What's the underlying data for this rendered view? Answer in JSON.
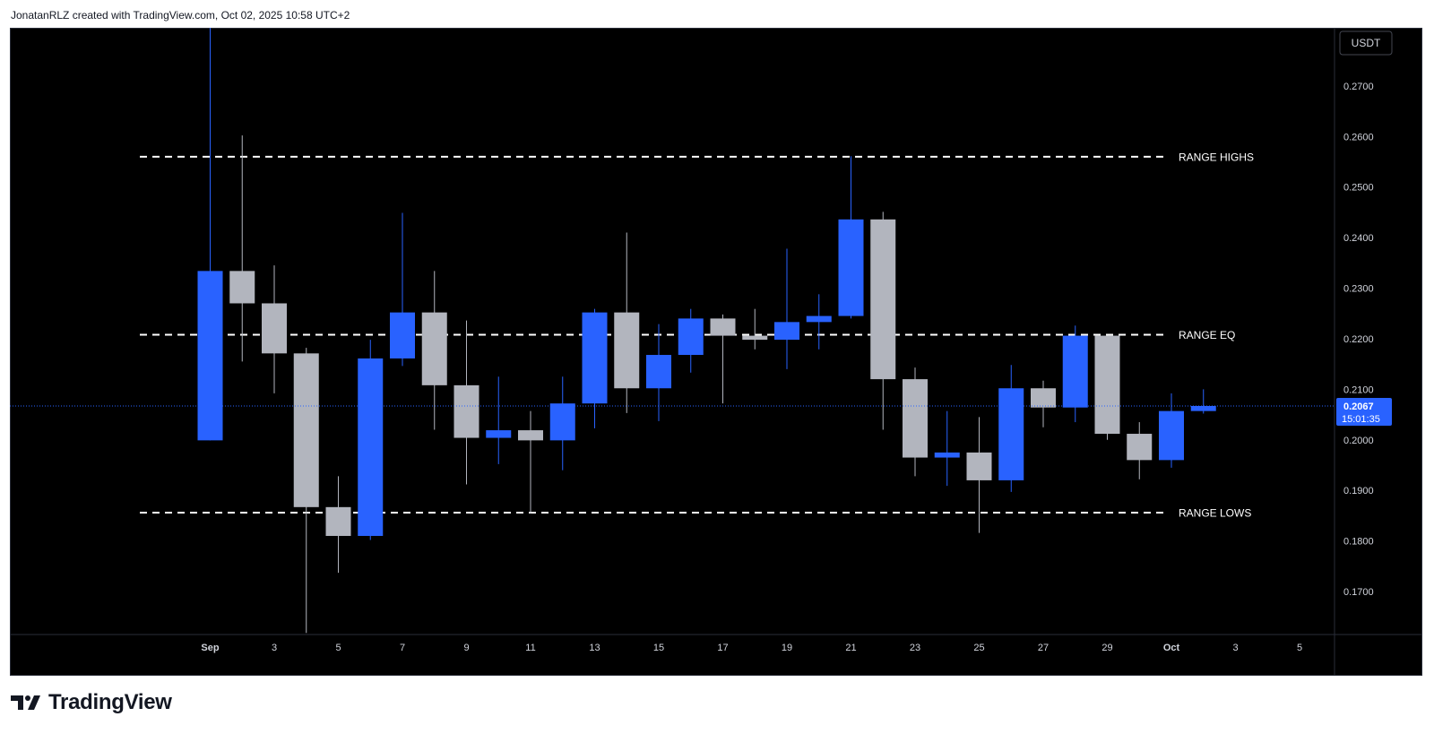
{
  "header": {
    "attribution": "JonatanRLZ created with TradingView.com, Oct 02, 2025 10:58 UTC+2"
  },
  "brand": {
    "name": "TradingView",
    "icon": "tradingview-logo-icon"
  },
  "colors": {
    "bull": "#2962ff",
    "bear": "#b2b5be",
    "background": "#000000",
    "text": "#d1d4dc",
    "price_line": "#2962ff",
    "level": "#ffffff"
  },
  "chart_data": {
    "type": "candlestick",
    "currency": "USDT",
    "x_tick_labels": [
      "Sep",
      "3",
      "5",
      "7",
      "9",
      "11",
      "13",
      "15",
      "17",
      "19",
      "21",
      "23",
      "25",
      "27",
      "29",
      "Oct",
      "3",
      "5"
    ],
    "y_tick_labels": [
      "0.2700",
      "0.2600",
      "0.2500",
      "0.2400",
      "0.2300",
      "0.2200",
      "0.2100",
      "0.2000",
      "0.1900",
      "0.1800",
      "0.1700"
    ],
    "ylim": [
      0.1615,
      0.2815
    ],
    "candles": [
      {
        "date": "2025-09-01",
        "open": 0.1999,
        "high": 0.2855,
        "low": 0.1999,
        "close": 0.2334
      },
      {
        "date": "2025-09-02",
        "open": 0.2334,
        "high": 0.2602,
        "low": 0.2155,
        "close": 0.227
      },
      {
        "date": "2025-09-03",
        "open": 0.227,
        "high": 0.2345,
        "low": 0.2092,
        "close": 0.2171
      },
      {
        "date": "2025-09-04",
        "open": 0.2171,
        "high": 0.2182,
        "low": 0.1618,
        "close": 0.1867
      },
      {
        "date": "2025-09-05",
        "open": 0.1867,
        "high": 0.1928,
        "low": 0.1737,
        "close": 0.181
      },
      {
        "date": "2025-09-06",
        "open": 0.181,
        "high": 0.2198,
        "low": 0.1802,
        "close": 0.2161
      },
      {
        "date": "2025-09-07",
        "open": 0.2161,
        "high": 0.2449,
        "low": 0.2146,
        "close": 0.2252
      },
      {
        "date": "2025-09-08",
        "open": 0.2252,
        "high": 0.2334,
        "low": 0.202,
        "close": 0.2108
      },
      {
        "date": "2025-09-09",
        "open": 0.2108,
        "high": 0.2236,
        "low": 0.1912,
        "close": 0.2004
      },
      {
        "date": "2025-09-10",
        "open": 0.2004,
        "high": 0.2125,
        "low": 0.1952,
        "close": 0.2019
      },
      {
        "date": "2025-09-11",
        "open": 0.2019,
        "high": 0.2057,
        "low": 0.1855,
        "close": 0.1999
      },
      {
        "date": "2025-09-12",
        "open": 0.1999,
        "high": 0.2125,
        "low": 0.194,
        "close": 0.2072
      },
      {
        "date": "2025-09-13",
        "open": 0.2072,
        "high": 0.2259,
        "low": 0.2023,
        "close": 0.2252
      },
      {
        "date": "2025-09-14",
        "open": 0.2252,
        "high": 0.241,
        "low": 0.2053,
        "close": 0.2102
      },
      {
        "date": "2025-09-15",
        "open": 0.2102,
        "high": 0.2229,
        "low": 0.2037,
        "close": 0.2168
      },
      {
        "date": "2025-09-16",
        "open": 0.2168,
        "high": 0.2259,
        "low": 0.2133,
        "close": 0.224
      },
      {
        "date": "2025-09-17",
        "open": 0.224,
        "high": 0.2248,
        "low": 0.2072,
        "close": 0.2206
      },
      {
        "date": "2025-09-18",
        "open": 0.2206,
        "high": 0.2259,
        "low": 0.2179,
        "close": 0.2198
      },
      {
        "date": "2025-09-19",
        "open": 0.2198,
        "high": 0.2378,
        "low": 0.214,
        "close": 0.2233
      },
      {
        "date": "2025-09-20",
        "open": 0.2233,
        "high": 0.2288,
        "low": 0.2179,
        "close": 0.2245
      },
      {
        "date": "2025-09-21",
        "open": 0.2245,
        "high": 0.2561,
        "low": 0.224,
        "close": 0.2436
      },
      {
        "date": "2025-09-22",
        "open": 0.2436,
        "high": 0.2451,
        "low": 0.202,
        "close": 0.212
      },
      {
        "date": "2025-09-23",
        "open": 0.212,
        "high": 0.2143,
        "low": 0.1928,
        "close": 0.1965
      },
      {
        "date": "2025-09-24",
        "open": 0.1965,
        "high": 0.2057,
        "low": 0.1909,
        "close": 0.1975
      },
      {
        "date": "2025-09-25",
        "open": 0.1975,
        "high": 0.2045,
        "low": 0.1816,
        "close": 0.192
      },
      {
        "date": "2025-09-26",
        "open": 0.192,
        "high": 0.2148,
        "low": 0.1897,
        "close": 0.2102
      },
      {
        "date": "2025-09-27",
        "open": 0.2102,
        "high": 0.2117,
        "low": 0.2025,
        "close": 0.2064
      },
      {
        "date": "2025-09-28",
        "open": 0.2064,
        "high": 0.2226,
        "low": 0.2035,
        "close": 0.2206
      },
      {
        "date": "2025-09-29",
        "open": 0.2206,
        "high": 0.2206,
        "low": 0.2,
        "close": 0.2012
      },
      {
        "date": "2025-09-30",
        "open": 0.2012,
        "high": 0.2035,
        "low": 0.1922,
        "close": 0.196
      },
      {
        "date": "2025-10-01",
        "open": 0.196,
        "high": 0.2092,
        "low": 0.1945,
        "close": 0.2057
      },
      {
        "date": "2025-10-02",
        "open": 0.2057,
        "high": 0.21,
        "low": 0.2052,
        "close": 0.2067
      }
    ],
    "levels": [
      {
        "label": "RANGE HIGHS",
        "value": 0.256
      },
      {
        "label": "RANGE EQ",
        "value": 0.2208
      },
      {
        "label": "RANGE LOWS",
        "value": 0.1856
      }
    ],
    "last_price": {
      "value": 0.2067,
      "label": "0.2067",
      "countdown": "15:01:35"
    },
    "grid": false
  }
}
